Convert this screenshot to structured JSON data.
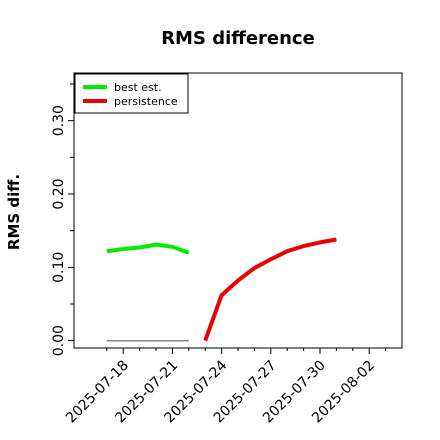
{
  "chart_data": {
    "type": "line",
    "title": "RMS difference",
    "ylabel": "RMS diff.",
    "xlabel": "",
    "xlim": [
      "2025-07-15",
      "2025-08-04"
    ],
    "ylim": [
      -0.01,
      0.365
    ],
    "xticks": [
      "2025-07-18",
      "2025-07-21",
      "2025-07-24",
      "2025-07-27",
      "2025-07-30",
      "2025-08-02"
    ],
    "yticks": [
      0.0,
      0.1,
      0.2,
      0.3
    ],
    "ytick_labels": [
      "0.00",
      "0.10",
      "0.20",
      "0.30"
    ],
    "legend_position": "top-left",
    "grid": false,
    "series": [
      {
        "name": "best est.",
        "color": "#00ee00",
        "x": [
          "2025-07-17",
          "2025-07-18",
          "2025-07-19",
          "2025-07-20",
          "2025-07-21",
          "2025-07-22"
        ],
        "y": [
          0.122,
          0.125,
          0.127,
          0.131,
          0.128,
          0.12
        ]
      },
      {
        "name": "persistence",
        "color": "#ee0000",
        "x": [
          "2025-07-23",
          "2025-07-24",
          "2025-07-25",
          "2025-07-26",
          "2025-07-27",
          "2025-07-28",
          "2025-07-29",
          "2025-07-30",
          "2025-07-31"
        ],
        "y": [
          0.0,
          0.062,
          0.082,
          0.099,
          0.111,
          0.122,
          0.129,
          0.134,
          0.138
        ]
      },
      {
        "name": "",
        "color": "#888888",
        "x": [
          "2025-07-17",
          "2025-07-22"
        ],
        "y": [
          0.0,
          0.0
        ]
      }
    ]
  }
}
